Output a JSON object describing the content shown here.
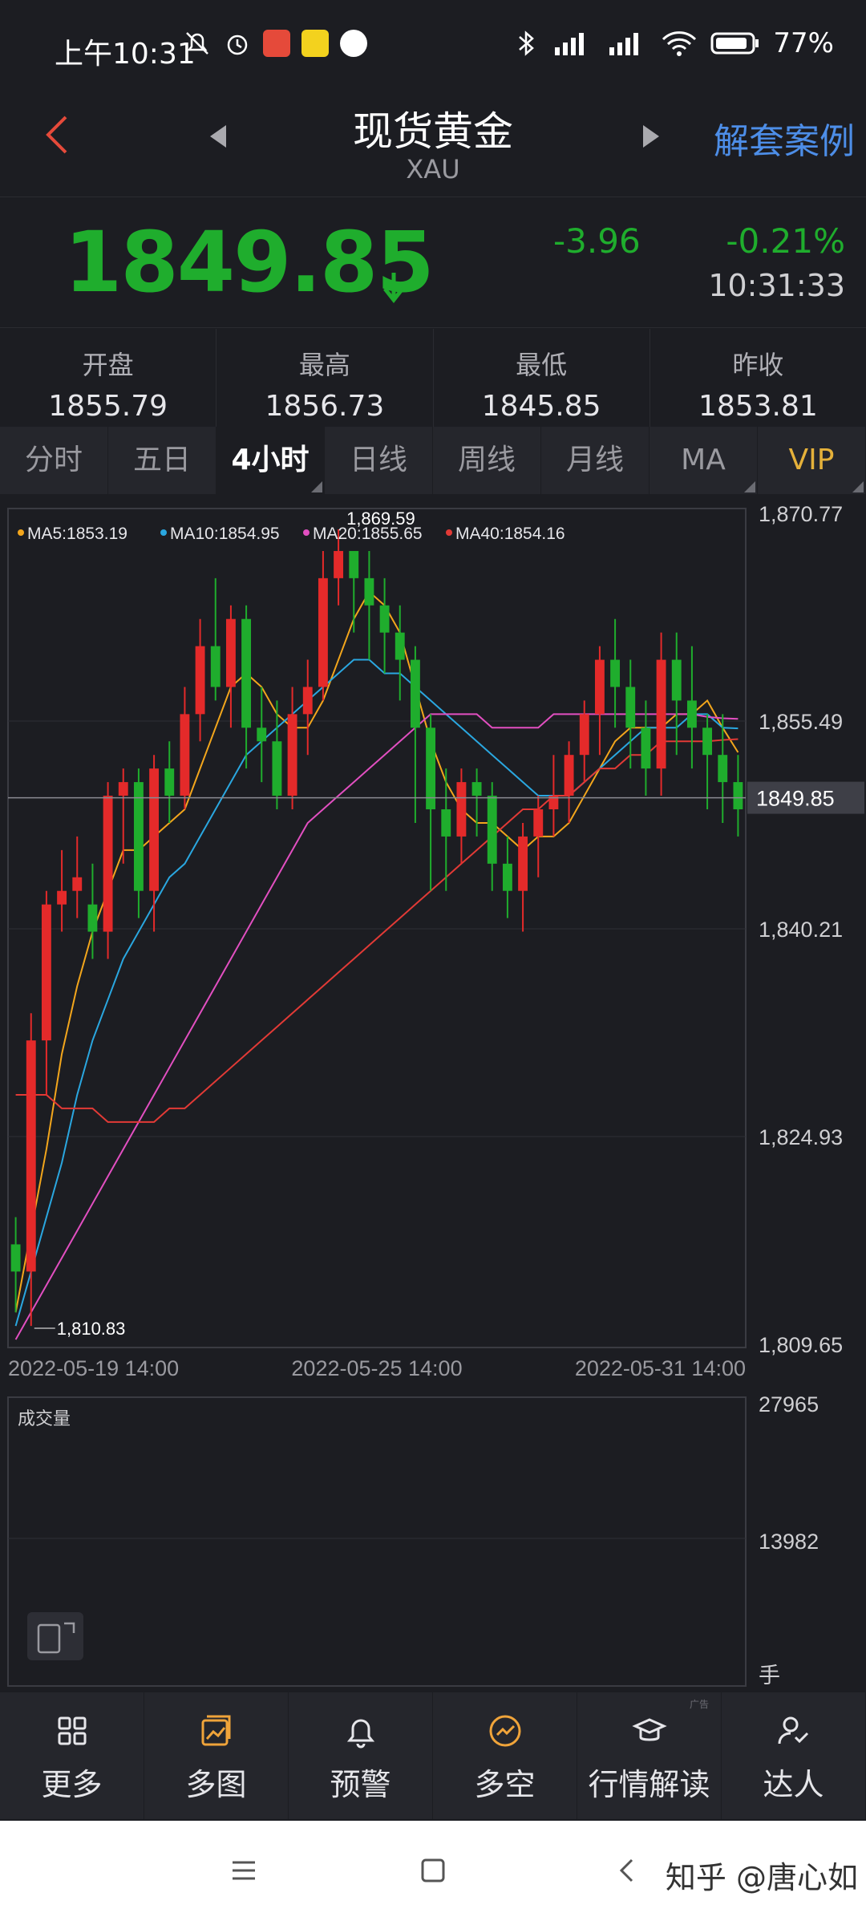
{
  "status": {
    "time": "上午10:31",
    "battery": "77%"
  },
  "header": {
    "title": "现货黄金",
    "subtitle": "XAU",
    "case_link": "解套案例"
  },
  "quote": {
    "price": "1849.85",
    "change": "-3.96",
    "change_pct": "-0.21%",
    "time": "10:31:33"
  },
  "stats": [
    {
      "label": "开盘",
      "value": "1855.79"
    },
    {
      "label": "最高",
      "value": "1856.73"
    },
    {
      "label": "最低",
      "value": "1845.85"
    },
    {
      "label": "昨收",
      "value": "1853.81"
    }
  ],
  "tabs": [
    "分时",
    "五日",
    "4小时",
    "日线",
    "周线",
    "月线",
    "MA",
    "VIP"
  ],
  "active_tab": "4小时",
  "chart_data": {
    "type": "candlestick",
    "ma_legend": [
      {
        "name": "MA5",
        "value": "1853.19",
        "color": "#f3a61c"
      },
      {
        "name": "MA10",
        "value": "1854.95",
        "color": "#2aa7e0"
      },
      {
        "name": "MA20",
        "value": "1855.65",
        "color": "#e24fc1"
      },
      {
        "name": "MA40",
        "value": "1854.16",
        "color": "#e23a36"
      }
    ],
    "y_ticks": [
      "1,870.77",
      "1,855.49",
      "1,840.21",
      "1,824.93",
      "1,809.65"
    ],
    "ylim": [
      1809.65,
      1870.77
    ],
    "current_price_label": "1849.85",
    "current_price": 1849.85,
    "max_annotation": "1,869.59",
    "max_value": 1869.59,
    "min_annotation": "1,810.83",
    "min_value": 1810.83,
    "x_ticks": [
      "2022-05-19 14:00",
      "2022-05-25 14:00",
      "2022-05-31 14:00"
    ],
    "candles": [
      [
        1817,
        1815,
        1819,
        1812
      ],
      [
        1815,
        1832,
        1834,
        1811
      ],
      [
        1832,
        1842,
        1843,
        1828
      ],
      [
        1842,
        1843,
        1846,
        1840
      ],
      [
        1843,
        1844,
        1847,
        1841
      ],
      [
        1842,
        1840,
        1845,
        1838
      ],
      [
        1840,
        1850,
        1851,
        1838
      ],
      [
        1850,
        1851,
        1852,
        1845
      ],
      [
        1851,
        1843,
        1852,
        1841
      ],
      [
        1843,
        1852,
        1853,
        1840
      ],
      [
        1852,
        1850,
        1854,
        1848
      ],
      [
        1850,
        1856,
        1858,
        1849
      ],
      [
        1856,
        1861,
        1863,
        1854
      ],
      [
        1861,
        1858,
        1866,
        1857
      ],
      [
        1858,
        1863,
        1864,
        1855
      ],
      [
        1863,
        1855,
        1864,
        1852
      ],
      [
        1855,
        1854,
        1858,
        1851
      ],
      [
        1854,
        1850,
        1857,
        1849
      ],
      [
        1850,
        1856,
        1858,
        1849
      ],
      [
        1856,
        1858,
        1860,
        1853
      ],
      [
        1858,
        1866,
        1868,
        1857
      ],
      [
        1866,
        1868,
        1869.59,
        1864
      ],
      [
        1868,
        1866,
        1868,
        1862
      ],
      [
        1866,
        1864,
        1868,
        1860
      ],
      [
        1864,
        1862,
        1866,
        1859
      ],
      [
        1862,
        1860,
        1864,
        1857
      ],
      [
        1860,
        1855,
        1861,
        1848
      ],
      [
        1855,
        1849,
        1856,
        1843
      ],
      [
        1849,
        1847,
        1852,
        1843
      ],
      [
        1847,
        1851,
        1852,
        1845
      ],
      [
        1851,
        1850,
        1852,
        1847
      ],
      [
        1850,
        1845,
        1851,
        1843
      ],
      [
        1845,
        1843,
        1847,
        1841
      ],
      [
        1843,
        1847,
        1848,
        1840
      ],
      [
        1847,
        1849,
        1850,
        1844
      ],
      [
        1849,
        1850,
        1853,
        1847
      ],
      [
        1850,
        1853,
        1854,
        1848
      ],
      [
        1853,
        1856,
        1857,
        1851
      ],
      [
        1856,
        1860,
        1861,
        1853
      ],
      [
        1860,
        1858,
        1863,
        1855
      ],
      [
        1858,
        1855,
        1860,
        1852
      ],
      [
        1855,
        1852,
        1857,
        1850
      ],
      [
        1852,
        1860,
        1862,
        1850
      ],
      [
        1860,
        1857,
        1862,
        1853
      ],
      [
        1857,
        1855,
        1861,
        1852
      ],
      [
        1855,
        1853,
        1856,
        1849
      ],
      [
        1853,
        1851,
        1856,
        1848
      ],
      [
        1851,
        1849,
        1853,
        1847
      ]
    ],
    "ma_series": {
      "MA5": [
        1812,
        1818,
        1824,
        1831,
        1836,
        1840,
        1843,
        1846,
        1846,
        1847,
        1848,
        1849,
        1852,
        1855,
        1858,
        1859,
        1858,
        1856,
        1855,
        1855,
        1857,
        1860,
        1863,
        1865,
        1864,
        1862,
        1858,
        1854,
        1851,
        1849,
        1848,
        1848,
        1847,
        1846,
        1847,
        1847,
        1848,
        1850,
        1852,
        1854,
        1855,
        1855,
        1855,
        1856,
        1856,
        1857,
        1855,
        1853.19
      ],
      "MA10": [
        1811,
        1815,
        1819,
        1823,
        1828,
        1832,
        1835,
        1838,
        1840,
        1842,
        1844,
        1845,
        1847,
        1849,
        1851,
        1853,
        1854,
        1855,
        1856,
        1857,
        1858,
        1859,
        1860,
        1860,
        1859,
        1859,
        1858,
        1857,
        1856,
        1855,
        1854,
        1853,
        1852,
        1851,
        1850,
        1850,
        1850,
        1851,
        1852,
        1853,
        1854,
        1855,
        1855,
        1855,
        1856,
        1856,
        1855,
        1854.95
      ],
      "MA20": [
        1810,
        1812,
        1814,
        1816,
        1818,
        1820,
        1822,
        1824,
        1826,
        1828,
        1830,
        1832,
        1834,
        1836,
        1838,
        1840,
        1842,
        1844,
        1846,
        1848,
        1849,
        1850,
        1851,
        1852,
        1853,
        1854,
        1855,
        1856,
        1856,
        1856,
        1856,
        1855,
        1855,
        1855,
        1855,
        1856,
        1856,
        1856,
        1856,
        1856,
        1856,
        1856,
        1856,
        1856,
        1856,
        1855.8,
        1855.7,
        1855.65
      ],
      "MA40": [
        1828,
        1828,
        1828,
        1827,
        1827,
        1827,
        1826,
        1826,
        1826,
        1826,
        1827,
        1827,
        1828,
        1829,
        1830,
        1831,
        1832,
        1833,
        1834,
        1835,
        1836,
        1837,
        1838,
        1839,
        1840,
        1841,
        1842,
        1843,
        1844,
        1845,
        1846,
        1847,
        1848,
        1849,
        1849,
        1850,
        1850,
        1851,
        1852,
        1852,
        1853,
        1853,
        1854,
        1854,
        1854,
        1854,
        1854.1,
        1854.16
      ]
    }
  },
  "volume": {
    "label": "成交量",
    "ticks": [
      "27965",
      "13982"
    ],
    "unit": "手",
    "ad": "广告"
  },
  "bottom_nav": [
    "更多",
    "多图",
    "预警",
    "多空",
    "行情解读",
    "达人"
  ],
  "watermark": "知乎 @唐心如"
}
